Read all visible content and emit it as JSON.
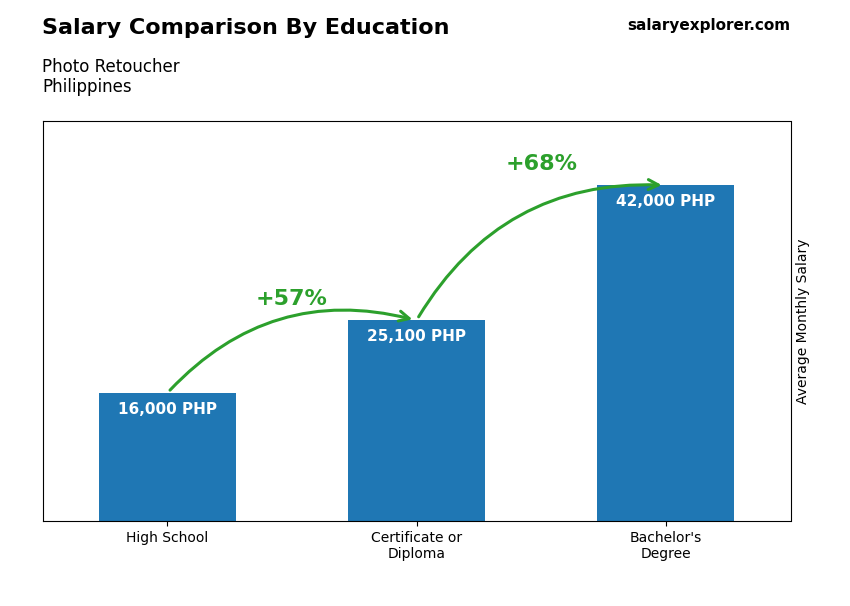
{
  "chart_data": {
    "type": "bar",
    "title": "Salary Comparison By Education",
    "subtitle": "Photo Retoucher\nPhilippines",
    "y_label": "Average Monthly Salary",
    "categories": [
      "High School",
      "Certificate or\nDiploma",
      "Bachelor's\nDegree"
    ],
    "values": [
      16000,
      25100,
      42000
    ],
    "value_labels": [
      "16,000 PHP",
      "25,100 PHP",
      "42,000 PHP"
    ],
    "data_labels": true,
    "ylim": [
      0,
      50000
    ],
    "tick_labels": "x",
    "grid": false,
    "annotations": [
      {
        "text": "+57%",
        "from": "High School",
        "to": "Certificate or\nDiploma"
      },
      {
        "text": "+68%",
        "from": "Certificate or\nDiploma",
        "to": "Bachelor's\nDegree"
      },
      {
        "text": "salaryexplorer.com"
      }
    ]
  }
}
